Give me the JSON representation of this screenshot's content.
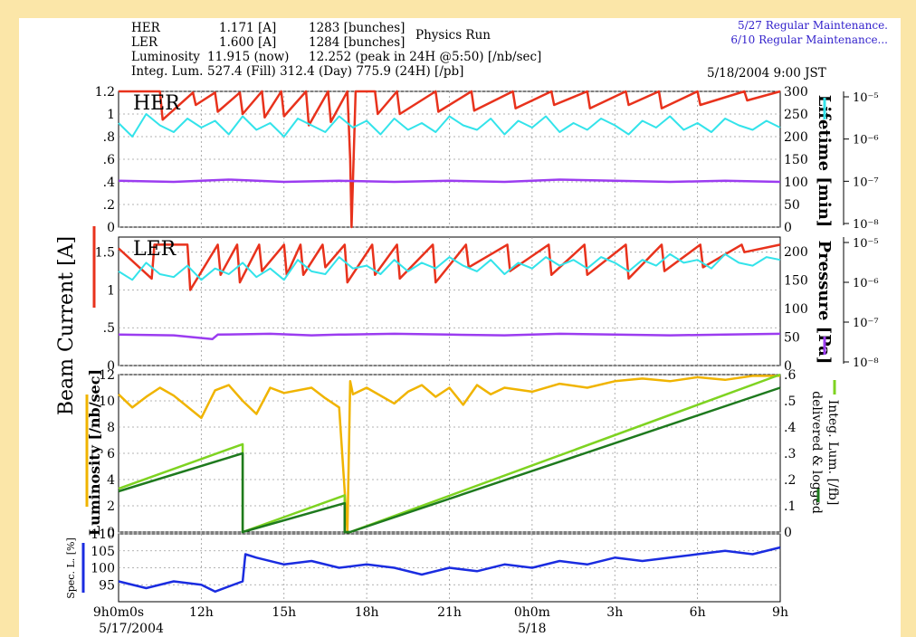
{
  "header": {
    "her_label": "HER",
    "her_current": "1.171 [A]",
    "her_bunches": "1283 [bunches]",
    "run_mode": "Physics Run",
    "ler_label": "LER",
    "ler_current": "1.600 [A]",
    "ler_bunches": "1284 [bunches]",
    "lum_label": "Luminosity",
    "lum_now": "11.915  (now)",
    "lum_peak": "12.252  (peak in 24H @5:50) [/nb/sec]",
    "integ_label": "Integ. Lum.",
    "integ_values": "527.4 (Fill)  312.4 (Day)  775.9 (24H) [/pb]",
    "timestamp": "5/18/2004 9:00 JST",
    "notices": [
      "5/27 Regular Maintenance.",
      "6/10 Regular Maintenance..."
    ]
  },
  "chart_data": {
    "type": "line",
    "x_ticks": [
      "9h0m0s",
      "12h",
      "15h",
      "18h",
      "21h",
      "0h0m",
      "3h",
      "6h",
      "9h"
    ],
    "x_date_labels": [
      "5/17/2004",
      "5/18"
    ],
    "x_range_hours": [
      0,
      24
    ],
    "panels": [
      {
        "name": "HER",
        "ylabel_left": "Beam Current [A]",
        "ylim_left": [
          0,
          1.2
        ],
        "left_ticks": [
          "1.2",
          "1",
          ".8",
          ".6",
          ".4",
          ".2",
          "0"
        ],
        "ylabel_right": "Lifetime [min]",
        "ylim_right": [
          0,
          300
        ],
        "right_ticks": [
          "300",
          "250",
          "200",
          "150",
          "100",
          "50",
          "0"
        ],
        "ylabel_far_right": "Pressure [Pa]",
        "far_right_ticks": [
          "10⁻⁵",
          "10⁻⁶",
          "10⁻⁷",
          "10⁻⁸"
        ],
        "series": [
          {
            "name": "Beam Current",
            "color": "#e8321c",
            "x_hours": [
              0,
              1.5,
              1.6,
              2.7,
              2.8,
              3.5,
              3.6,
              4.4,
              4.5,
              5.2,
              5.3,
              5.9,
              6.0,
              6.8,
              6.9,
              7.6,
              7.7,
              8.3,
              8.4,
              8.45,
              8.6,
              9.3,
              9.4,
              10.1,
              10.2,
              11.5,
              11.6,
              12.8,
              12.9,
              14.3,
              14.4,
              15.7,
              15.8,
              17.0,
              17.1,
              18.4,
              18.5,
              19.6,
              19.7,
              21.0,
              21.1,
              22.7,
              22.8,
              24
            ],
            "y": [
              1.2,
              1.2,
              0.95,
              1.19,
              1.08,
              1.19,
              1.02,
              1.19,
              1.0,
              1.2,
              0.97,
              1.2,
              0.98,
              1.2,
              0.9,
              1.2,
              0.93,
              1.2,
              0.6,
              0.0,
              1.2,
              1.2,
              1.0,
              1.2,
              1.0,
              1.2,
              1.02,
              1.2,
              1.03,
              1.2,
              1.05,
              1.2,
              1.08,
              1.2,
              1.05,
              1.2,
              1.08,
              1.2,
              1.05,
              1.2,
              1.08,
              1.2,
              1.12,
              1.2
            ]
          },
          {
            "name": "Lifetime",
            "color": "#33e3ea",
            "x_hours": [
              0,
              0.5,
              1.0,
              1.5,
              2.0,
              2.5,
              3.0,
              3.5,
              4.0,
              4.5,
              5.0,
              5.5,
              6.0,
              6.5,
              7.0,
              7.5,
              8.0,
              8.5,
              9.0,
              9.5,
              10.0,
              10.5,
              11.0,
              11.5,
              12.0,
              12.5,
              13.0,
              13.5,
              14.0,
              14.5,
              15.0,
              15.5,
              16.0,
              16.5,
              17.0,
              17.5,
              18.0,
              18.5,
              19.0,
              19.5,
              20.0,
              20.5,
              21.0,
              21.5,
              22.0,
              22.5,
              23.0,
              23.5,
              24.0
            ],
            "y": [
              230,
              200,
              250,
              225,
              210,
              240,
              220,
              235,
              205,
              245,
              215,
              230,
              200,
              240,
              225,
              210,
              245,
              220,
              235,
              205,
              240,
              215,
              230,
              210,
              245,
              225,
              215,
              240,
              205,
              235,
              220,
              245,
              210,
              230,
              215,
              240,
              225,
              205,
              235,
              220,
              245,
              215,
              230,
              210,
              240,
              225,
              215,
              235,
              220
            ]
          },
          {
            "name": "Pressure",
            "color": "#9b3cf0",
            "x_hours": [
              0,
              2,
              4,
              6,
              8,
              10,
              12,
              14,
              16,
              18,
              20,
              22,
              24
            ],
            "y": [
              0.41,
              0.4,
              0.42,
              0.4,
              0.41,
              0.4,
              0.41,
              0.4,
              0.42,
              0.41,
              0.4,
              0.41,
              0.4
            ]
          }
        ]
      },
      {
        "name": "LER",
        "ylim_left": [
          0,
          1.7
        ],
        "left_ticks": [
          "1.5",
          "1",
          ".5",
          "0"
        ],
        "ylim_right": [
          0,
          225
        ],
        "right_ticks": [
          "200",
          "150",
          "100",
          "50",
          "0"
        ],
        "far_right_ticks": [
          "10⁻⁵",
          "10⁻⁶",
          "10⁻⁷",
          "10⁻⁸"
        ],
        "series": [
          {
            "name": "Beam Current",
            "color": "#e8321c",
            "x_hours": [
              0,
              1.2,
              1.3,
              2.5,
              2.6,
              3.6,
              3.7,
              4.3,
              4.4,
              5.1,
              5.2,
              6.0,
              6.1,
              6.6,
              6.7,
              7.4,
              7.5,
              8.2,
              8.3,
              9.2,
              9.3,
              10.1,
              10.2,
              11.4,
              11.5,
              12.6,
              12.7,
              14.1,
              14.2,
              15.6,
              15.7,
              16.9,
              17.0,
              18.4,
              18.5,
              19.7,
              19.8,
              21.1,
              21.2,
              22.6,
              22.7,
              24
            ],
            "y": [
              1.55,
              1.15,
              1.6,
              1.6,
              1.0,
              1.6,
              1.2,
              1.6,
              1.1,
              1.6,
              1.25,
              1.6,
              1.2,
              1.6,
              1.2,
              1.6,
              1.3,
              1.6,
              1.1,
              1.6,
              1.2,
              1.6,
              1.15,
              1.6,
              1.1,
              1.6,
              1.3,
              1.6,
              1.25,
              1.6,
              1.2,
              1.6,
              1.2,
              1.6,
              1.15,
              1.6,
              1.25,
              1.6,
              1.3,
              1.6,
              1.5,
              1.6
            ]
          },
          {
            "name": "Lifetime",
            "color": "#33e3ea",
            "x_hours": [
              0,
              0.5,
              1.0,
              1.5,
              2.0,
              2.5,
              3.0,
              3.5,
              4.0,
              4.5,
              5.0,
              5.5,
              6.0,
              6.5,
              7.0,
              7.5,
              8.0,
              8.5,
              9.0,
              9.5,
              10.0,
              10.5,
              11.0,
              11.5,
              12.0,
              12.5,
              13.0,
              13.5,
              14.0,
              14.5,
              15.0,
              15.5,
              16.0,
              16.5,
              17.0,
              17.5,
              18.0,
              18.5,
              19.0,
              19.5,
              20.0,
              20.5,
              21.0,
              21.5,
              22.0,
              22.5,
              23.0,
              23.5,
              24.0
            ],
            "y": [
              165,
              150,
              180,
              160,
              155,
              175,
              150,
              170,
              160,
              180,
              155,
              170,
              150,
              185,
              165,
              160,
              190,
              170,
              175,
              160,
              185,
              165,
              180,
              170,
              190,
              175,
              165,
              185,
              160,
              180,
              170,
              190,
              175,
              185,
              170,
              190,
              180,
              165,
              185,
              175,
              195,
              180,
              185,
              170,
              195,
              180,
              175,
              190,
              185
            ]
          },
          {
            "name": "Pressure",
            "color": "#9b3cf0",
            "x_hours": [
              0,
              2,
              3.4,
              3.6,
              5.5,
              7,
              8,
              10,
              12,
              14,
              16,
              18,
              20,
              22,
              24
            ],
            "y": [
              0.41,
              0.4,
              0.35,
              0.41,
              0.42,
              0.4,
              0.41,
              0.42,
              0.41,
              0.4,
              0.42,
              0.41,
              0.4,
              0.41,
              0.42
            ]
          }
        ]
      },
      {
        "name": "Luminosity",
        "ylabel_left": "Luminosity [/nb/sec]",
        "ylim_left": [
          0,
          12
        ],
        "left_ticks": [
          "12",
          "10",
          "8",
          "6",
          "4",
          "2",
          "0"
        ],
        "ylabel_right": "Integ. Lum. [/fb] delivered & logged",
        "ylim_right": [
          0,
          0.6
        ],
        "right_ticks": [
          ".6",
          ".5",
          ".4",
          ".3",
          ".2",
          ".1",
          "0"
        ],
        "series": [
          {
            "name": "Luminosity",
            "color": "#f0b400",
            "x_hours": [
              0,
              0.5,
              1,
              1.5,
              2,
              3,
              3.5,
              4,
              4.5,
              5,
              5.5,
              6,
              7,
              7.5,
              8,
              8.3,
              8.4,
              8.5,
              9,
              10,
              10.5,
              11,
              11.5,
              12,
              12.5,
              13,
              13.5,
              14,
              15,
              16,
              17,
              18,
              19,
              20,
              21,
              22,
              23,
              24
            ],
            "y": [
              10.5,
              9.5,
              10.3,
              11.0,
              10.4,
              8.7,
              10.8,
              11.2,
              10.0,
              9.0,
              11.0,
              10.6,
              11.0,
              10.2,
              9.5,
              0,
              11.5,
              10.5,
              11.0,
              9.8,
              10.7,
              11.2,
              10.3,
              11.0,
              9.7,
              11.2,
              10.5,
              11.0,
              10.7,
              11.3,
              11.0,
              11.5,
              11.7,
              11.5,
              11.8,
              11.6,
              11.9,
              11.9
            ]
          },
          {
            "name": "delivered",
            "color": "#7ed321",
            "x_hours": [
              0,
              4.5,
              4.5,
              8.2,
              8.2,
              8.4,
              8.4,
              24
            ],
            "y": [
              3.3,
              6.7,
              0,
              2.8,
              0,
              0,
              0,
              12.0
            ]
          },
          {
            "name": "logged",
            "color": "#1e7a1e",
            "x_hours": [
              0,
              4.5,
              4.5,
              8.2,
              8.2,
              8.4,
              8.4,
              24
            ],
            "y": [
              3.1,
              6.0,
              0,
              2.2,
              0,
              0,
              0,
              11.0
            ]
          }
        ]
      },
      {
        "name": "Spec. L.",
        "ylabel_left": "Spec. L. [%]",
        "ylim_left": [
          90,
          110
        ],
        "left_ticks": [
          "110",
          "105",
          "100",
          "95"
        ],
        "series": [
          {
            "name": "Spec. L.",
            "color": "#1a2ce0",
            "x_hours": [
              0,
              1,
              2,
              3,
              3.5,
              4.5,
              4.6,
              5,
              6,
              7,
              8,
              9,
              10,
              11,
              12,
              13,
              14,
              15,
              16,
              17,
              18,
              19,
              20,
              21,
              22,
              23,
              24
            ],
            "y": [
              96,
              94,
              96,
              95,
              93,
              96,
              104,
              103,
              101,
              102,
              100,
              101,
              100,
              98,
              100,
              99,
              101,
              100,
              102,
              101,
              103,
              102,
              103,
              104,
              105,
              104,
              106
            ]
          }
        ]
      }
    ]
  }
}
